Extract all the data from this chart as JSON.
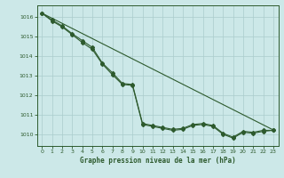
{
  "title": "Graphe pression niveau de la mer (hPa)",
  "bg_color": "#cce8e8",
  "grid_color": "#aacccc",
  "line_color": "#2d5a2d",
  "xlim": [
    -0.5,
    23.5
  ],
  "ylim": [
    1009.4,
    1016.6
  ],
  "yticks": [
    1010,
    1011,
    1012,
    1013,
    1014,
    1015,
    1016
  ],
  "xticks": [
    0,
    1,
    2,
    3,
    4,
    5,
    6,
    7,
    8,
    9,
    10,
    11,
    12,
    13,
    14,
    15,
    16,
    17,
    18,
    19,
    20,
    21,
    22,
    23
  ],
  "hours": [
    0,
    1,
    2,
    3,
    4,
    5,
    6,
    7,
    8,
    9,
    10,
    11,
    12,
    13,
    14,
    15,
    16,
    17,
    18,
    19,
    20,
    21,
    22,
    23
  ],
  "s_straight": [
    1016.2,
    1015.94,
    1015.68,
    1015.42,
    1015.16,
    1014.9,
    1014.64,
    1014.38,
    1014.12,
    1013.86,
    1013.6,
    1013.34,
    1013.08,
    1012.82,
    1012.56,
    1012.3,
    1012.04,
    1011.78,
    1011.52,
    1011.26,
    1011.0,
    1010.74,
    1010.48,
    1010.22
  ],
  "s1": [
    1016.2,
    1015.85,
    1015.55,
    1015.15,
    1014.8,
    1014.45,
    1013.65,
    1013.15,
    1012.6,
    1012.55,
    1010.55,
    1010.45,
    1010.35,
    1010.25,
    1010.3,
    1010.5,
    1010.55,
    1010.45,
    1010.05,
    1009.85,
    1010.15,
    1010.1,
    1010.2,
    1010.2
  ],
  "s2": [
    1016.2,
    1015.8,
    1015.5,
    1015.1,
    1014.7,
    1014.35,
    1013.6,
    1013.05,
    1012.55,
    1012.5,
    1010.5,
    1010.4,
    1010.3,
    1010.2,
    1010.25,
    1010.45,
    1010.5,
    1010.4,
    1010.0,
    1009.8,
    1010.1,
    1010.05,
    1010.15,
    1010.2
  ]
}
